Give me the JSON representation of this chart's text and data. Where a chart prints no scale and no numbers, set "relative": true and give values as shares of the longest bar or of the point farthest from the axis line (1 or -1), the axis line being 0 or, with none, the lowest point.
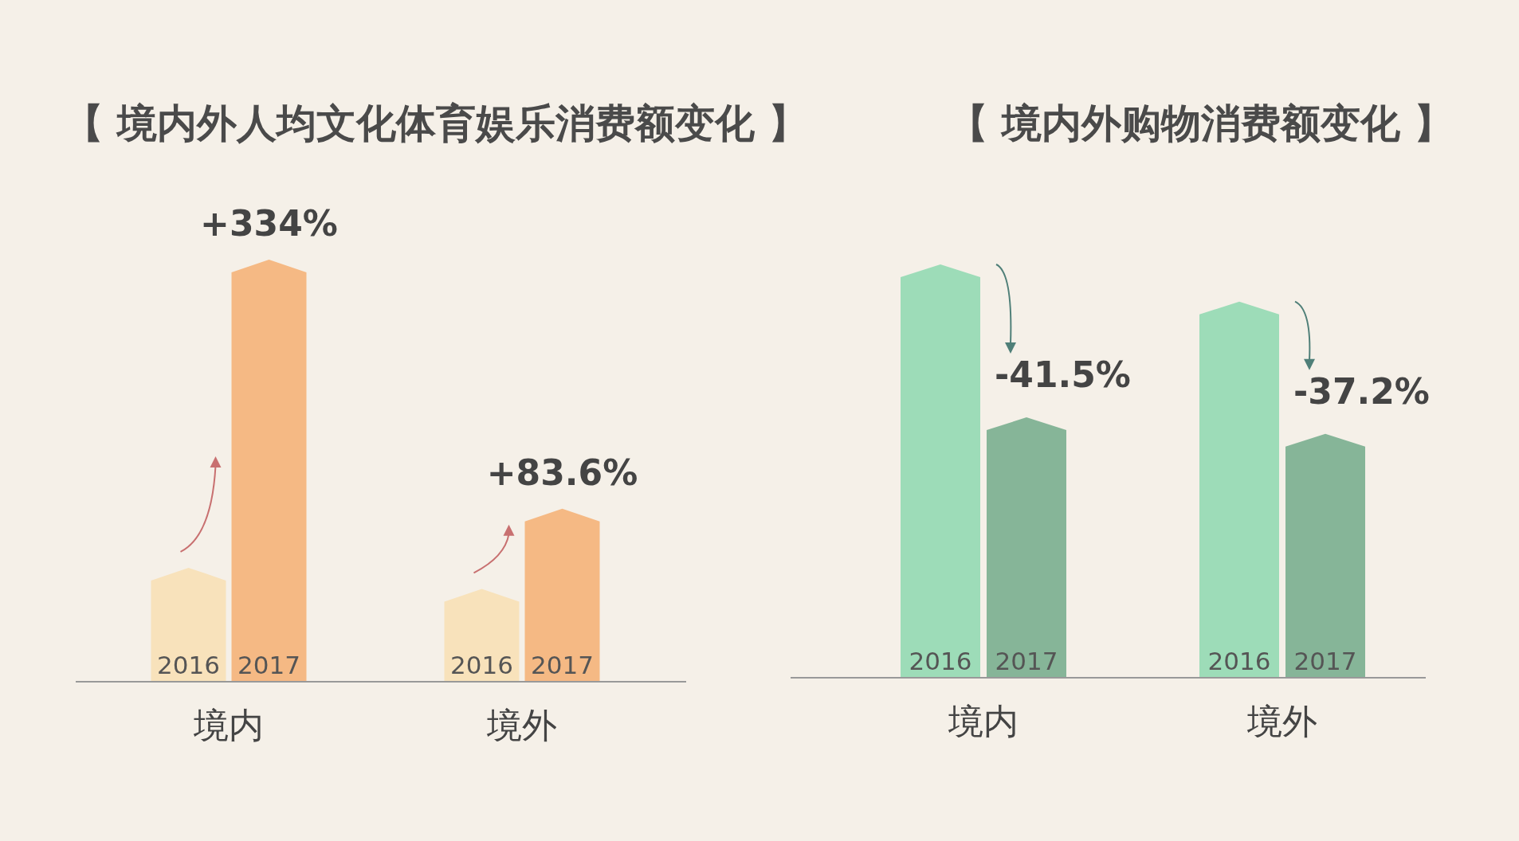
{
  "chart_data": [
    {
      "type": "bar",
      "title": "【 境内外人均文化体育娱乐消费额变化 】",
      "relative": true,
      "categories": [
        "境内",
        "境外"
      ],
      "series": [
        {
          "name": "2016",
          "color": "#f8e2bb",
          "values": [
            0.27,
            0.22
          ]
        },
        {
          "name": "2017",
          "color": "#f5b984",
          "values": [
            1,
            0.41
          ]
        }
      ],
      "annotations": [
        "+334%",
        "+83.6%"
      ]
    },
    {
      "type": "bar",
      "title": "【 境内外购物消费额变化 】",
      "relative": true,
      "categories": [
        "境内",
        "境外"
      ],
      "series": [
        {
          "name": "2016",
          "color": "#9ddcb8",
          "values": [
            1,
            0.91
          ]
        },
        {
          "name": "2017",
          "color": "#86b598",
          "values": [
            0.63,
            0.59
          ]
        }
      ],
      "annotations": [
        "-41.5%",
        "-37.2%"
      ]
    }
  ]
}
